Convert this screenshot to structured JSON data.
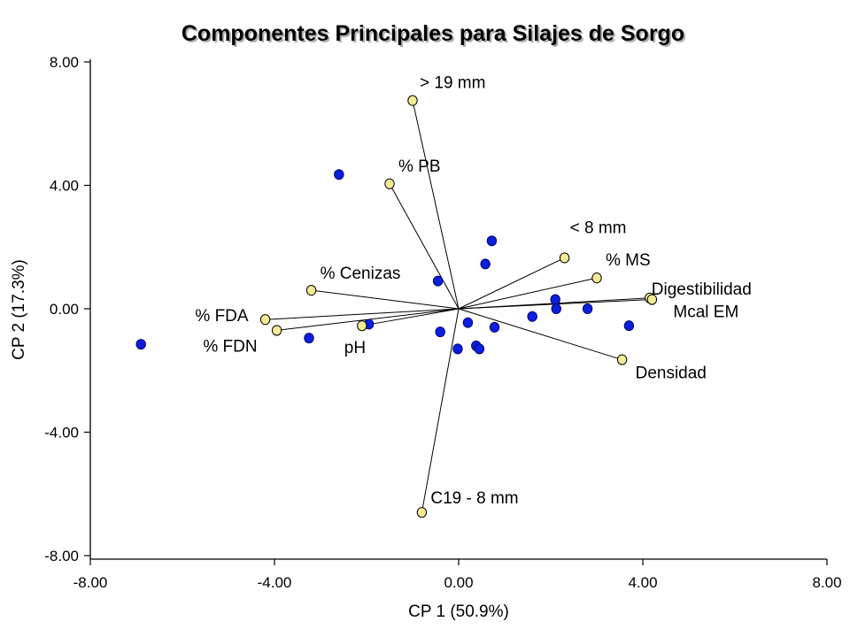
{
  "chart_data": {
    "type": "scatter",
    "title": "Componentes Principales para Silajes de Sorgo",
    "xlabel": "CP 1 (50.9%)",
    "ylabel": "CP 2 (17.3%)",
    "xlim": [
      -8,
      8
    ],
    "ylim": [
      -8,
      8
    ],
    "x_ticks": [
      "-8.00",
      "-4.00",
      "0.00",
      "4.00",
      "8.00"
    ],
    "y_ticks": [
      "8.00",
      "4.00",
      "0.00",
      "-4.00",
      "-8.00"
    ],
    "grid": false,
    "colors": {
      "observations": "#0a1edc",
      "variables": "#f5eb96",
      "vector": "#000000"
    },
    "observations": [
      {
        "x": -6.9,
        "y": -1.15
      },
      {
        "x": -3.25,
        "y": -0.95
      },
      {
        "x": -2.6,
        "y": 4.35
      },
      {
        "x": -1.95,
        "y": -0.5
      },
      {
        "x": -0.45,
        "y": 0.9
      },
      {
        "x": -0.4,
        "y": -0.75
      },
      {
        "x": -0.02,
        "y": -1.3
      },
      {
        "x": 0.2,
        "y": -0.45
      },
      {
        "x": 0.38,
        "y": -1.2
      },
      {
        "x": 0.45,
        "y": -1.3
      },
      {
        "x": 0.58,
        "y": 1.45
      },
      {
        "x": 0.72,
        "y": 2.2
      },
      {
        "x": 0.78,
        "y": -0.6
      },
      {
        "x": 1.6,
        "y": -0.25
      },
      {
        "x": 2.1,
        "y": 0.3
      },
      {
        "x": 2.12,
        "y": 0.0
      },
      {
        "x": 2.8,
        "y": 0.0
      },
      {
        "x": 3.7,
        "y": -0.55
      }
    ],
    "variables": [
      {
        "name": "> 19 mm",
        "x": -1.0,
        "y": 6.75
      },
      {
        "name": "% PB",
        "x": -1.5,
        "y": 4.05
      },
      {
        "name": "< 8 mm",
        "x": 2.3,
        "y": 1.65
      },
      {
        "name": "% MS",
        "x": 3.0,
        "y": 1.0
      },
      {
        "name": "Digestibilidad",
        "x": 4.15,
        "y": 0.35
      },
      {
        "name": "Mcal EM",
        "x": 4.2,
        "y": 0.3
      },
      {
        "name": "% Cenizas",
        "x": -3.2,
        "y": 0.6
      },
      {
        "name": "% FDA",
        "x": -4.2,
        "y": -0.35
      },
      {
        "name": "% FDN",
        "x": -3.95,
        "y": -0.7
      },
      {
        "name": "pH",
        "x": -2.1,
        "y": -0.55
      },
      {
        "name": "Densidad",
        "x": 3.55,
        "y": -1.65
      },
      {
        "name": "C19 - 8 mm",
        "x": -0.8,
        "y": -6.6
      }
    ]
  }
}
